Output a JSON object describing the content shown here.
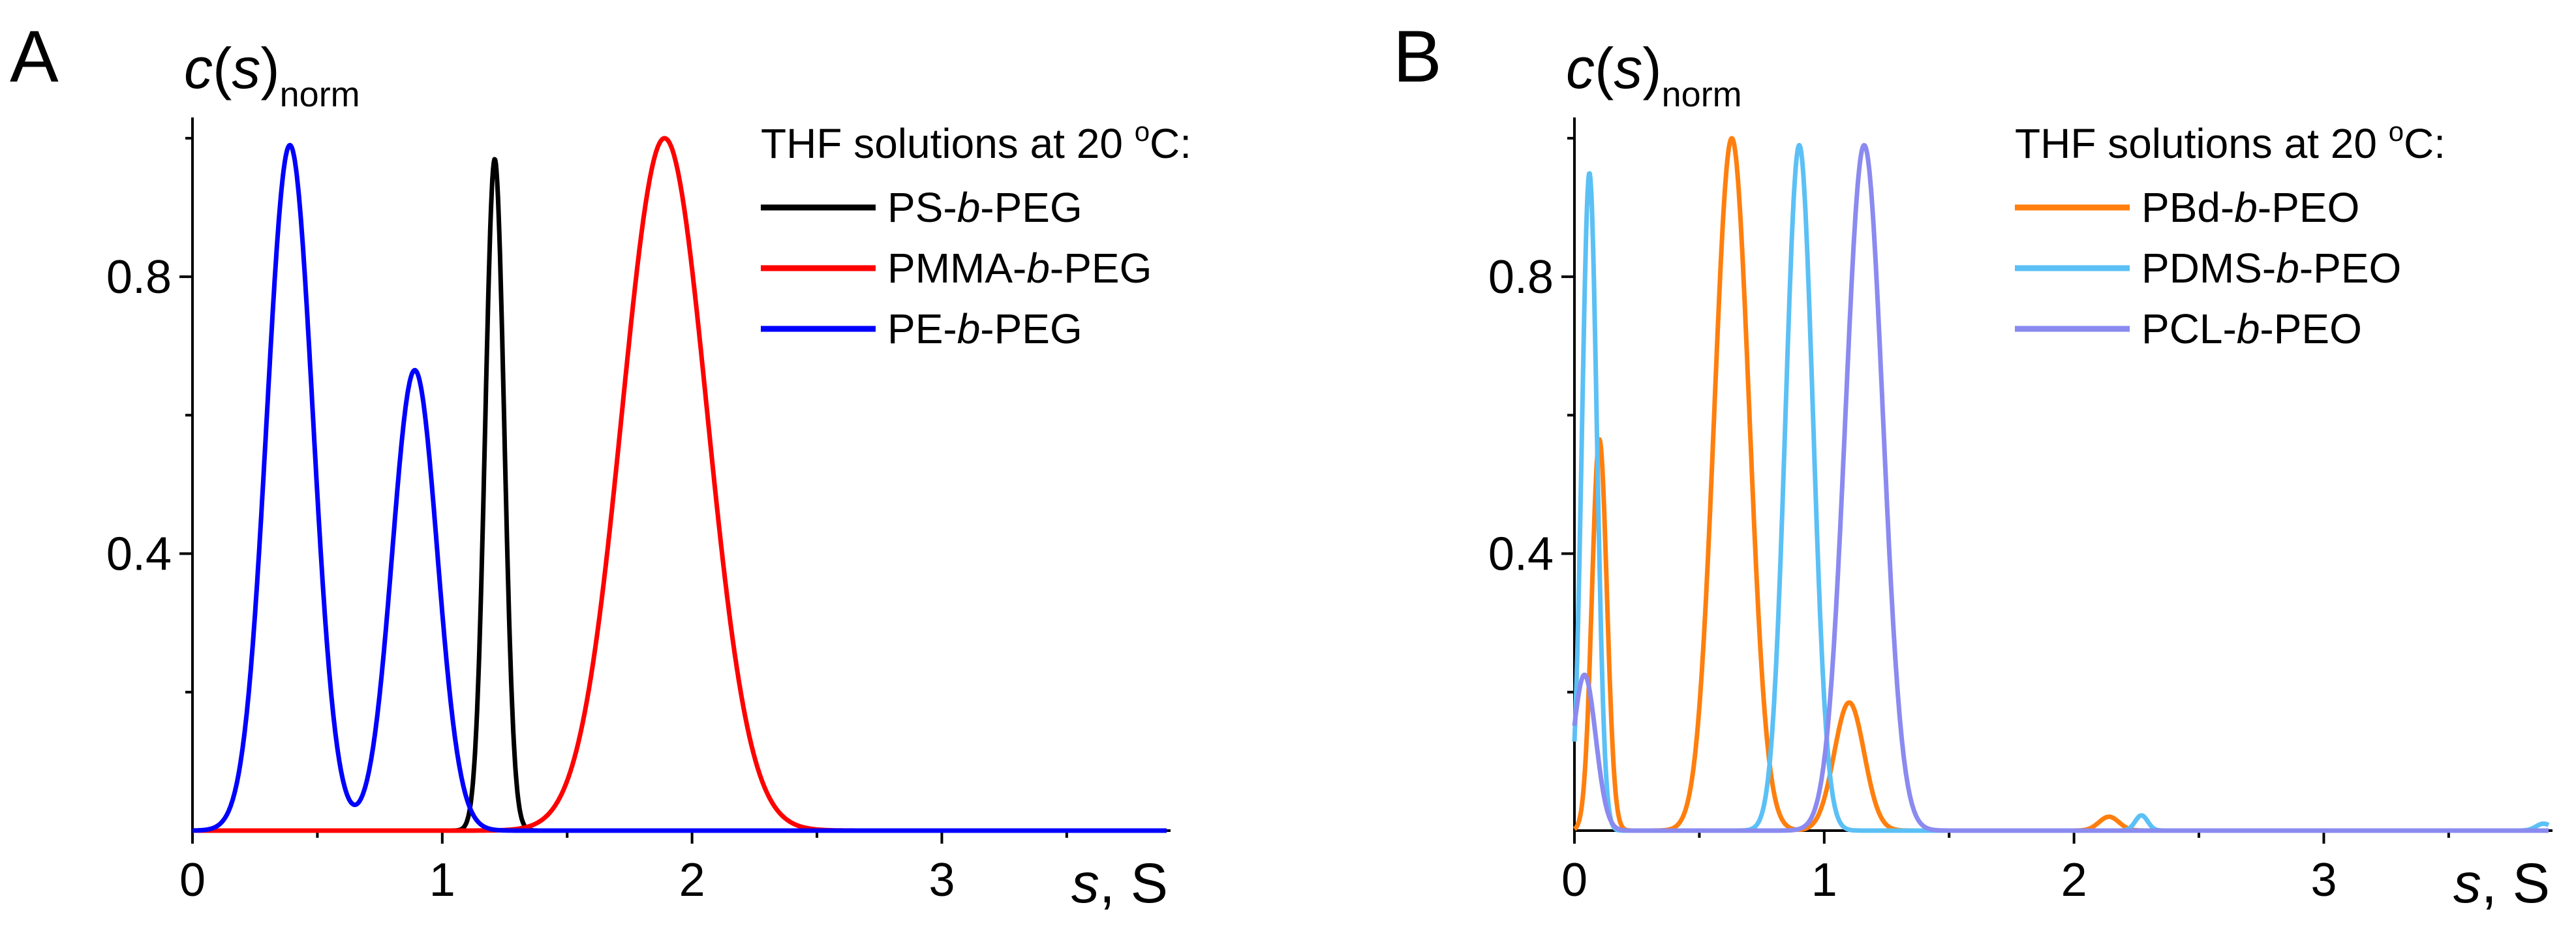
{
  "chart_data": [
    {
      "panel_label": "A",
      "type": "line",
      "title": "",
      "ylabel": {
        "base": "c",
        "paren_open": "(",
        "var": "s",
        "paren_close": ")",
        "sub": "norm"
      },
      "xlabel": {
        "var": "s",
        "unit": ", S"
      },
      "xlim": [
        0,
        3.9
      ],
      "ylim": [
        0,
        1.03
      ],
      "x_ticks": [
        "0",
        "1",
        "2",
        "3"
      ],
      "y_ticks": [
        "0.4",
        "0.8"
      ],
      "legend_title": "THF solutions at 20 °C:",
      "legend_title_parts": {
        "pre": "THF solutions at 20 ",
        "sup": "o",
        "post": "C:"
      },
      "legend_position": "top-right",
      "series": [
        {
          "name": "PS-b-PEG",
          "name_parts": [
            "PS-",
            "b",
            "-PEG"
          ],
          "color": "#000000",
          "peaks": [
            {
              "center": 1.21,
              "height": 0.97,
              "sigma": 0.038
            }
          ]
        },
        {
          "name": "PMMA-b-PEG",
          "name_parts": [
            "PMMA-",
            "b",
            "-PEG"
          ],
          "color": "#ff0000",
          "peaks": [
            {
              "center": 1.89,
              "height": 1.0,
              "sigma": 0.17
            }
          ]
        },
        {
          "name": "PE-b-PEG",
          "name_parts": [
            "PE-",
            "b",
            "-PEG"
          ],
          "color": "#0000ff",
          "peaks": [
            {
              "center": 0.39,
              "height": 0.99,
              "sigma": 0.092
            },
            {
              "center": 0.89,
              "height": 0.665,
              "sigma": 0.09
            }
          ]
        }
      ]
    },
    {
      "panel_label": "B",
      "type": "line",
      "title": "",
      "ylabel": {
        "base": "c",
        "paren_open": "(",
        "var": "s",
        "paren_close": ")",
        "sub": "norm"
      },
      "xlabel": {
        "var": "s",
        "unit": ", S"
      },
      "xlim": [
        0,
        3.9
      ],
      "ylim": [
        0,
        1.03
      ],
      "x_ticks": [
        "0",
        "1",
        "2",
        "3"
      ],
      "y_ticks": [
        "0.4",
        "0.8"
      ],
      "legend_title": "THF solutions at 20 °C:",
      "legend_title_parts": {
        "pre": "THF solutions at 20 ",
        "sup": "o",
        "post": "C:"
      },
      "legend_position": "top-right",
      "series": [
        {
          "name": "PBd-b-PEO",
          "name_parts": [
            "PBd-",
            "b",
            "-PEO"
          ],
          "color": "#ff7f0e",
          "peaks": [
            {
              "center": 0.1,
              "height": 0.565,
              "sigma": 0.03
            },
            {
              "center": 0.63,
              "height": 1.0,
              "sigma": 0.07
            },
            {
              "center": 1.1,
              "height": 0.185,
              "sigma": 0.06
            },
            {
              "center": 2.14,
              "height": 0.02,
              "sigma": 0.04
            }
          ]
        },
        {
          "name": "PDMS-b-PEO",
          "name_parts": [
            "PDMS-",
            "b",
            "-PEO"
          ],
          "color": "#5bc0f5",
          "peaks": [
            {
              "center": 0.06,
              "height": 0.95,
              "sigma": 0.03
            },
            {
              "center": 0.9,
              "height": 0.99,
              "sigma": 0.055
            },
            {
              "center": 2.27,
              "height": 0.022,
              "sigma": 0.025
            },
            {
              "center": 3.88,
              "height": 0.01,
              "sigma": 0.03
            }
          ]
        },
        {
          "name": "PCL-b-PEO",
          "name_parts": [
            "PCL-",
            "b",
            "-PEO"
          ],
          "color": "#8a8af0",
          "peaks": [
            {
              "center": 0.04,
              "height": 0.225,
              "sigma": 0.045
            },
            {
              "center": 1.16,
              "height": 0.99,
              "sigma": 0.075
            }
          ]
        }
      ]
    }
  ]
}
